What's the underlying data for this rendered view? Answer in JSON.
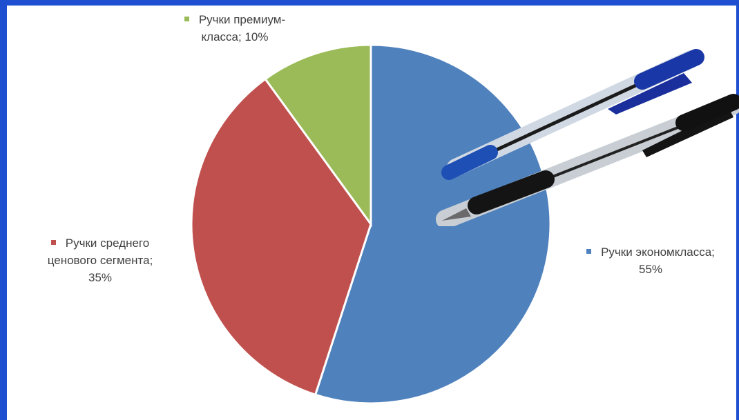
{
  "chart_data": {
    "type": "pie",
    "slices": [
      {
        "label": "Ручки экономкласса",
        "value": 55,
        "text_a": "Ручки экономкласса;",
        "text_b": "55%",
        "color": "#4f81bd"
      },
      {
        "label": "Ручки среднего ценового сегмента",
        "value": 35,
        "text_a": "Ручки среднего",
        "text_b": "ценового сегмента;",
        "text_c": "35%",
        "color": "#c0504d"
      },
      {
        "label": "Ручки премиум-класса",
        "value": 10,
        "text_a": "Ручки премиум-",
        "text_b": "класса; 10%",
        "color": "#9bbb59"
      }
    ],
    "start": "top",
    "direction": "clockwise"
  },
  "decor": {
    "background_color": "#1f4fd1",
    "image": "ballpoint-pens-photo"
  }
}
